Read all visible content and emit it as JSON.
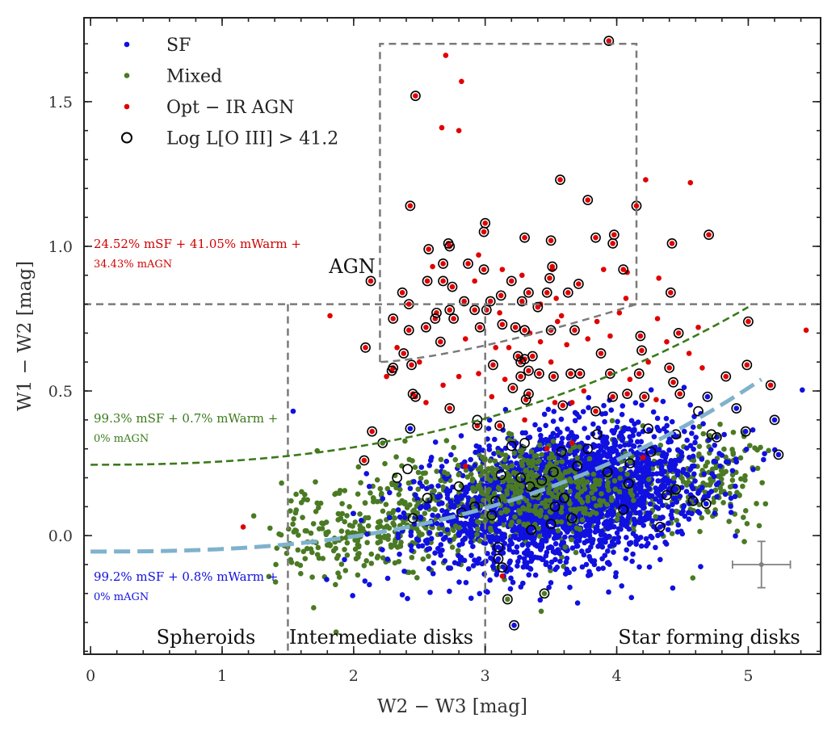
{
  "chart_data": {
    "type": "scatter",
    "xlabel": "W2 − W3 [mag]",
    "ylabel": "W1 − W2 [mag]",
    "xlim": [
      -0.05,
      5.55
    ],
    "ylim": [
      -0.41,
      1.79
    ],
    "x_ticks": [
      0,
      1,
      2,
      3,
      4,
      5
    ],
    "y_ticks": [
      0.0,
      0.5,
      1.0,
      1.5
    ],
    "x_tick_labels": [
      "0",
      "1",
      "2",
      "3",
      "4",
      "5"
    ],
    "y_tick_labels": [
      "0.0",
      "0.5",
      "1.0",
      "1.5"
    ],
    "legend": {
      "placement": "top-left",
      "entries": [
        {
          "label": "SF",
          "color": "#1010e0",
          "marker": "dot"
        },
        {
          "label": "Mixed",
          "color": "#4a7a24",
          "marker": "dot"
        },
        {
          "label": "Opt − IR AGN",
          "color": "#e00000",
          "marker": "dot"
        },
        {
          "label": "Log L[O III] > 41.2",
          "color": "#000000",
          "marker": "ring"
        }
      ]
    },
    "region_labels": {
      "agn": "AGN",
      "spheroids": "Spheroids",
      "intermediate": "Intermediate disks",
      "star_forming": "Star forming disks"
    },
    "annotations": {
      "red": {
        "line1": "24.52% mSF + 41.05% mWarm +",
        "line2": "34.43% mAGN",
        "color": "#d00000"
      },
      "green": {
        "line1": "99.3% mSF + 0.7% mWarm +",
        "line2": "0% mAGN",
        "color": "#3a7a1a"
      },
      "blue": {
        "line1": "99.2% mSF + 0.8% mWarm +",
        "line2": "0% mAGN",
        "color": "#1010e0"
      }
    },
    "dividers": {
      "horizontal_y": 0.8,
      "vertical_x": [
        1.5,
        3.0
      ],
      "agn_box": {
        "x": [
          2.2,
          4.15
        ],
        "y_top": 1.7,
        "y_bottom_left": 0.6,
        "y_bottom_right": 0.8
      }
    },
    "curves": {
      "green": {
        "color": "#3a7a1a",
        "x0": 0.0,
        "x1": 5.0,
        "y0": 0.245,
        "y1": 0.79,
        "power": 2.4
      },
      "blue": {
        "color": "#7fb2cc",
        "x0": 0.0,
        "x1": 5.1,
        "y0": -0.055,
        "y1": 0.54,
        "power": 2.6
      }
    },
    "error_bar": {
      "x": 5.1,
      "y": -0.1,
      "xerr": 0.22,
      "yerr": 0.08,
      "color": "#808080"
    },
    "red_points": [
      [
        3.94,
        1.71
      ],
      [
        2.7,
        1.66
      ],
      [
        2.47,
        1.52
      ],
      [
        2.82,
        1.57
      ],
      [
        2.67,
        1.41
      ],
      [
        2.8,
        1.4
      ],
      [
        3.57,
        1.23
      ],
      [
        3.78,
        1.16
      ],
      [
        4.15,
        1.14
      ],
      [
        4.22,
        1.23
      ],
      [
        4.56,
        1.22
      ],
      [
        2.43,
        1.14
      ],
      [
        3.0,
        1.08
      ],
      [
        2.99,
        1.05
      ],
      [
        2.72,
        1.01
      ],
      [
        2.73,
        1.0
      ],
      [
        3.3,
        1.03
      ],
      [
        3.5,
        1.02
      ],
      [
        3.84,
        1.03
      ],
      [
        3.98,
        1.04
      ],
      [
        3.97,
        1.01
      ],
      [
        4.05,
        0.92
      ],
      [
        4.08,
        0.91
      ],
      [
        4.42,
        1.01
      ],
      [
        4.7,
        1.04
      ],
      [
        4.32,
        0.89
      ],
      [
        4.41,
        0.84
      ],
      [
        2.57,
        0.99
      ],
      [
        2.68,
        0.94
      ],
      [
        2.87,
        0.94
      ],
      [
        2.99,
        0.92
      ],
      [
        3.2,
        0.88
      ],
      [
        3.13,
        0.92
      ],
      [
        3.51,
        0.93
      ],
      [
        3.51,
        0.92
      ],
      [
        3.49,
        0.89
      ],
      [
        3.33,
        0.84
      ],
      [
        3.47,
        0.84
      ],
      [
        3.71,
        0.87
      ],
      [
        3.63,
        0.84
      ],
      [
        3.9,
        0.92
      ],
      [
        2.56,
        0.88
      ],
      [
        2.68,
        0.88
      ],
      [
        2.75,
        0.86
      ],
      [
        2.37,
        0.84
      ],
      [
        2.84,
        0.81
      ],
      [
        3.04,
        0.81
      ],
      [
        3.12,
        0.83
      ],
      [
        3.28,
        0.81
      ],
      [
        3.54,
        0.82
      ],
      [
        2.42,
        0.8
      ],
      [
        2.63,
        0.77
      ],
      [
        2.73,
        0.78
      ],
      [
        2.92,
        0.78
      ],
      [
        3.01,
        0.78
      ],
      [
        3.11,
        0.77
      ],
      [
        3.4,
        0.79
      ],
      [
        3.42,
        0.8
      ],
      [
        3.58,
        0.76
      ],
      [
        2.3,
        0.75
      ],
      [
        2.42,
        0.71
      ],
      [
        2.55,
        0.72
      ],
      [
        2.62,
        0.75
      ],
      [
        2.76,
        0.75
      ],
      [
        2.96,
        0.72
      ],
      [
        3.13,
        0.73
      ],
      [
        3.23,
        0.72
      ],
      [
        3.3,
        0.71
      ],
      [
        3.34,
        0.7
      ],
      [
        3.5,
        0.71
      ],
      [
        3.68,
        0.71
      ],
      [
        2.66,
        0.67
      ],
      [
        2.33,
        0.65
      ],
      [
        2.38,
        0.63
      ],
      [
        3.25,
        0.62
      ],
      [
        3.36,
        0.62
      ],
      [
        3.3,
        0.61
      ],
      [
        3.27,
        0.6
      ],
      [
        3.5,
        0.6
      ],
      [
        3.88,
        0.63
      ],
      [
        4.18,
        0.69
      ],
      [
        4.19,
        0.64
      ],
      [
        4.47,
        0.7
      ],
      [
        4.24,
        0.6
      ],
      [
        2.3,
        0.58
      ],
      [
        2.44,
        0.59
      ],
      [
        2.29,
        0.57
      ],
      [
        2.09,
        0.65
      ],
      [
        2.13,
        0.88
      ],
      [
        3.06,
        0.59
      ],
      [
        3.33,
        0.57
      ],
      [
        3.27,
        0.55
      ],
      [
        3.41,
        0.56
      ],
      [
        3.52,
        0.55
      ],
      [
        3.65,
        0.56
      ],
      [
        3.72,
        0.56
      ],
      [
        3.95,
        0.56
      ],
      [
        4.17,
        0.56
      ],
      [
        4.4,
        0.58
      ],
      [
        4.43,
        0.53
      ],
      [
        4.83,
        0.55
      ],
      [
        4.99,
        0.59
      ],
      [
        5.0,
        0.74
      ],
      [
        5.17,
        0.52
      ],
      [
        2.45,
        0.49
      ],
      [
        2.47,
        0.48
      ],
      [
        3.21,
        0.51
      ],
      [
        3.33,
        0.49
      ],
      [
        3.31,
        0.47
      ],
      [
        3.15,
        0.54
      ],
      [
        3.53,
        0.46
      ],
      [
        3.59,
        0.45
      ],
      [
        3.66,
        0.46
      ],
      [
        3.84,
        0.43
      ],
      [
        3.97,
        0.48
      ],
      [
        4.08,
        0.49
      ],
      [
        4.21,
        0.48
      ],
      [
        4.48,
        0.49
      ],
      [
        2.14,
        0.36
      ],
      [
        2.08,
        0.26
      ],
      [
        2.73,
        0.44
      ],
      [
        2.94,
        0.38
      ],
      [
        3.11,
        0.38
      ],
      [
        3.3,
        0.4
      ],
      [
        1.82,
        0.76
      ],
      [
        1.16,
        0.03
      ],
      [
        5.44,
        0.71
      ],
      [
        2.85,
        0.24
      ],
      [
        3.47,
        0.3
      ],
      [
        3.66,
        0.32
      ],
      [
        4.2,
        0.27
      ],
      [
        3.13,
        -0.14
      ],
      [
        2.6,
        0.93
      ],
      [
        2.95,
        0.97
      ],
      [
        3.62,
        0.66
      ],
      [
        3.78,
        0.68
      ],
      [
        4.02,
        0.77
      ],
      [
        4.31,
        0.75
      ],
      [
        4.62,
        0.72
      ],
      [
        3.18,
        0.65
      ],
      [
        2.85,
        0.68
      ],
      [
        4.55,
        0.63
      ],
      [
        4.1,
        0.54
      ],
      [
        3.75,
        0.5
      ],
      [
        2.68,
        0.52
      ],
      [
        2.25,
        0.55
      ],
      [
        3.42,
        0.67
      ],
      [
        3.85,
        0.74
      ],
      [
        2.5,
        0.6
      ],
      [
        4.3,
        0.47
      ],
      [
        3.08,
        0.65
      ],
      [
        2.92,
        0.88
      ],
      [
        3.28,
        0.9
      ],
      [
        2.8,
        0.55
      ],
      [
        3.55,
        0.74
      ],
      [
        4.07,
        0.82
      ],
      [
        3.95,
        0.69
      ],
      [
        4.38,
        0.67
      ],
      [
        2.55,
        0.46
      ],
      [
        3.05,
        0.48
      ],
      [
        4.65,
        0.58
      ],
      [
        2.95,
        0.56
      ]
    ],
    "ring_points": [
      [
        3.94,
        1.71
      ],
      [
        2.47,
        1.52
      ],
      [
        3.57,
        1.23
      ],
      [
        3.78,
        1.16
      ],
      [
        4.15,
        1.14
      ],
      [
        2.43,
        1.14
      ],
      [
        3.0,
        1.08
      ],
      [
        2.99,
        1.05
      ],
      [
        2.72,
        1.01
      ],
      [
        2.73,
        1.0
      ],
      [
        3.3,
        1.03
      ],
      [
        3.5,
        1.02
      ],
      [
        3.84,
        1.03
      ],
      [
        3.98,
        1.04
      ],
      [
        3.97,
        1.01
      ],
      [
        4.05,
        0.92
      ],
      [
        4.42,
        1.01
      ],
      [
        4.7,
        1.04
      ],
      [
        4.41,
        0.84
      ],
      [
        2.57,
        0.99
      ],
      [
        2.68,
        0.94
      ],
      [
        2.87,
        0.94
      ],
      [
        2.99,
        0.92
      ],
      [
        3.2,
        0.88
      ],
      [
        3.51,
        0.93
      ],
      [
        3.49,
        0.89
      ],
      [
        3.33,
        0.84
      ],
      [
        3.47,
        0.84
      ],
      [
        3.71,
        0.87
      ],
      [
        3.63,
        0.84
      ],
      [
        2.56,
        0.88
      ],
      [
        2.68,
        0.88
      ],
      [
        2.75,
        0.86
      ],
      [
        2.37,
        0.84
      ],
      [
        2.84,
        0.81
      ],
      [
        3.04,
        0.81
      ],
      [
        3.12,
        0.83
      ],
      [
        3.28,
        0.81
      ],
      [
        2.42,
        0.8
      ],
      [
        2.63,
        0.77
      ],
      [
        2.73,
        0.78
      ],
      [
        2.92,
        0.78
      ],
      [
        3.01,
        0.78
      ],
      [
        3.4,
        0.79
      ],
      [
        2.3,
        0.75
      ],
      [
        2.42,
        0.71
      ],
      [
        2.55,
        0.72
      ],
      [
        2.62,
        0.75
      ],
      [
        2.76,
        0.75
      ],
      [
        2.96,
        0.72
      ],
      [
        3.13,
        0.73
      ],
      [
        3.23,
        0.72
      ],
      [
        3.3,
        0.71
      ],
      [
        3.5,
        0.71
      ],
      [
        3.68,
        0.71
      ],
      [
        2.66,
        0.67
      ],
      [
        2.38,
        0.63
      ],
      [
        3.25,
        0.62
      ],
      [
        3.36,
        0.62
      ],
      [
        3.3,
        0.61
      ],
      [
        3.27,
        0.6
      ],
      [
        3.88,
        0.63
      ],
      [
        4.18,
        0.69
      ],
      [
        4.19,
        0.64
      ],
      [
        4.47,
        0.7
      ],
      [
        2.3,
        0.58
      ],
      [
        2.44,
        0.59
      ],
      [
        2.29,
        0.57
      ],
      [
        2.09,
        0.65
      ],
      [
        2.13,
        0.88
      ],
      [
        3.06,
        0.59
      ],
      [
        3.33,
        0.57
      ],
      [
        3.27,
        0.55
      ],
      [
        3.41,
        0.56
      ],
      [
        3.52,
        0.55
      ],
      [
        3.65,
        0.56
      ],
      [
        3.72,
        0.56
      ],
      [
        3.95,
        0.56
      ],
      [
        4.17,
        0.56
      ],
      [
        4.4,
        0.58
      ],
      [
        4.43,
        0.53
      ],
      [
        4.83,
        0.55
      ],
      [
        4.99,
        0.59
      ],
      [
        5.0,
        0.74
      ],
      [
        5.17,
        0.52
      ],
      [
        2.45,
        0.49
      ],
      [
        2.47,
        0.48
      ],
      [
        3.21,
        0.51
      ],
      [
        3.33,
        0.49
      ],
      [
        3.31,
        0.47
      ],
      [
        3.59,
        0.45
      ],
      [
        3.84,
        0.43
      ],
      [
        3.97,
        0.48
      ],
      [
        4.08,
        0.49
      ],
      [
        4.21,
        0.48
      ],
      [
        4.48,
        0.49
      ],
      [
        2.14,
        0.36
      ],
      [
        2.08,
        0.26
      ],
      [
        2.73,
        0.44
      ],
      [
        2.94,
        0.38
      ],
      [
        3.11,
        0.38
      ],
      [
        2.43,
        0.37
      ],
      [
        2.22,
        0.32
      ],
      [
        2.94,
        0.4
      ],
      [
        4.69,
        0.48
      ],
      [
        4.62,
        0.43
      ],
      [
        4.91,
        0.44
      ],
      [
        5.2,
        0.4
      ],
      [
        4.98,
        0.36
      ],
      [
        5.23,
        0.28
      ],
      [
        4.76,
        0.34
      ],
      [
        4.72,
        0.35
      ],
      [
        4.45,
        0.35
      ],
      [
        4.24,
        0.37
      ],
      [
        3.85,
        0.35
      ],
      [
        3.78,
        0.3
      ],
      [
        3.58,
        0.29
      ],
      [
        3.3,
        0.32
      ],
      [
        3.2,
        0.31
      ],
      [
        4.26,
        0.29
      ],
      [
        4.1,
        0.25
      ],
      [
        3.7,
        0.24
      ],
      [
        3.52,
        0.22
      ],
      [
        3.43,
        0.19
      ],
      [
        3.12,
        0.21
      ],
      [
        2.8,
        0.17
      ],
      [
        2.56,
        0.13
      ],
      [
        2.45,
        0.06
      ],
      [
        2.41,
        0.23
      ],
      [
        2.33,
        0.2
      ],
      [
        3.27,
        0.2
      ],
      [
        3.34,
        0.17
      ],
      [
        3.38,
        0.15
      ],
      [
        3.6,
        0.13
      ],
      [
        3.53,
        0.1
      ],
      [
        3.08,
        0.12
      ],
      [
        2.92,
        0.1
      ],
      [
        2.82,
        0.08
      ],
      [
        3.93,
        0.22
      ],
      [
        4.09,
        0.18
      ],
      [
        4.45,
        0.16
      ],
      [
        4.38,
        0.14
      ],
      [
        4.05,
        0.09
      ],
      [
        3.66,
        0.06
      ],
      [
        3.35,
        0.02
      ],
      [
        4.33,
        0.03
      ],
      [
        4.58,
        0.12
      ],
      [
        4.68,
        0.11
      ],
      [
        3.1,
        -0.04
      ],
      [
        3.1,
        -0.08
      ],
      [
        3.13,
        -0.11
      ],
      [
        3.45,
        -0.2
      ],
      [
        3.22,
        -0.31
      ],
      [
        3.17,
        -0.22
      ],
      [
        3.05,
        0.07
      ],
      [
        3.5,
        0.04
      ]
    ],
    "green_ring_points": [
      [
        3.17,
        -0.22
      ],
      [
        3.45,
        -0.2
      ],
      [
        2.22,
        0.32
      ],
      [
        3.1,
        -0.11
      ]
    ],
    "blue_ring_points": [
      [
        4.69,
        0.48
      ],
      [
        4.91,
        0.44
      ],
      [
        5.2,
        0.4
      ],
      [
        4.98,
        0.36
      ],
      [
        5.23,
        0.28
      ],
      [
        4.76,
        0.34
      ],
      [
        3.22,
        -0.31
      ],
      [
        2.43,
        0.37
      ],
      [
        3.1,
        -0.04
      ],
      [
        3.1,
        -0.08
      ],
      [
        4.68,
        0.11
      ],
      [
        4.33,
        0.03
      ],
      [
        1.54,
        0.43
      ],
      [
        3.87,
        0.24
      ]
    ]
  }
}
